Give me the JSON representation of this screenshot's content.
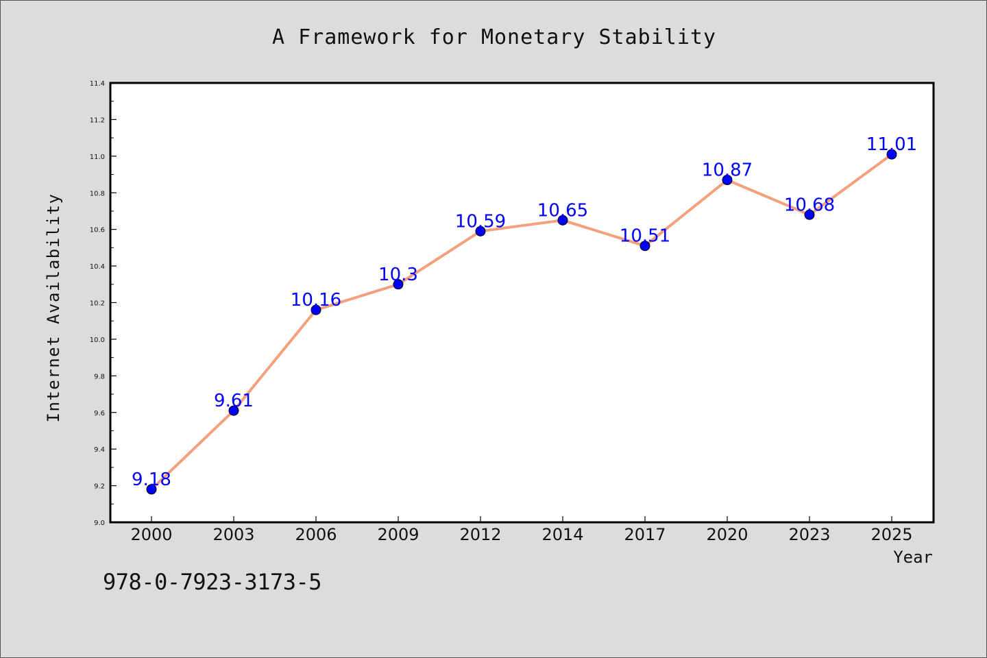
{
  "chart_data": {
    "type": "line",
    "title": "A Framework for Monetary Stability",
    "xlabel": "Year",
    "ylabel": "Internet Availability",
    "categories": [
      "2000",
      "2003",
      "2006",
      "2009",
      "2012",
      "2014",
      "2017",
      "2020",
      "2023",
      "2025"
    ],
    "series": [
      {
        "values": [
          9.18,
          9.61,
          10.16,
          10.3,
          10.59,
          10.65,
          10.51,
          10.87,
          10.68,
          11.01
        ],
        "labels": [
          "9.18",
          "9.61",
          "10.16",
          "10.3",
          "10.59",
          "10.65",
          "10.51",
          "10.87",
          "10.68",
          "11.01"
        ]
      }
    ],
    "ylim": [
      9.0,
      11.4
    ],
    "yticks": [
      "9.0",
      "9.2",
      "9.4",
      "9.6",
      "9.8",
      "10.0",
      "10.2",
      "10.4",
      "10.6",
      "10.8",
      "11.0",
      "11.2",
      "11.4"
    ],
    "grid": false,
    "legend": "none",
    "colors": {
      "line": "#f4a07c",
      "marker": "#0000ff",
      "data_label": "#0000ff",
      "background": "#dcdcdc",
      "plot_area": "#ffffff"
    }
  },
  "footer": {
    "isbn": "978-0-7923-3173-5"
  }
}
